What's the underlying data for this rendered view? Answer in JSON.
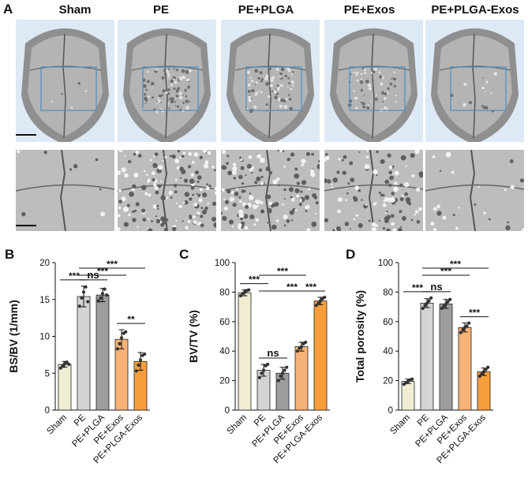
{
  "figure": {
    "panel_labels": [
      "A",
      "B",
      "C",
      "D"
    ],
    "groups": [
      "Sham",
      "PE",
      "PE+PLGA",
      "PE+Exos",
      "PE+PLGA-Exos"
    ],
    "bar_colors": [
      "#f1edd3",
      "#d4d4d4",
      "#9d9d9d",
      "#f7b277",
      "#f79f3c"
    ],
    "roi_box_color": "#4a90c4"
  },
  "chart_data": [
    {
      "type": "bar",
      "panel": "B",
      "title": "",
      "xlabel": "",
      "ylabel": "BS/BV (1/mm)",
      "ylim": [
        0,
        20
      ],
      "yticks": [
        "0",
        "5",
        "10",
        "15",
        "20"
      ],
      "categories": [
        "Sham",
        "PE",
        "PE+PLGA",
        "PE+Exos",
        "PE+PLGA-Exos"
      ],
      "values": [
        6.2,
        15.4,
        15.6,
        9.6,
        6.6
      ],
      "errors": [
        0.4,
        1.4,
        0.9,
        1.3,
        1.2
      ],
      "points": [
        [
          5.7,
          6.0,
          6.3,
          6.5,
          6.2
        ],
        [
          14.1,
          15.2,
          16.0,
          16.7,
          14.7
        ],
        [
          14.8,
          15.2,
          15.8,
          16.4,
          15.6
        ],
        [
          8.3,
          9.0,
          9.8,
          10.4,
          10.6
        ],
        [
          5.3,
          6.1,
          6.8,
          7.4,
          7.6
        ]
      ],
      "significance": [
        {
          "a": 0,
          "b": 1,
          "label": "***",
          "level": 0
        },
        {
          "a": 1,
          "b": 2,
          "label": "ns",
          "level": 0
        },
        {
          "a": 1,
          "b": 3,
          "label": "***",
          "level": 1
        },
        {
          "a": 1,
          "b": 4,
          "label": "***",
          "level": 2
        },
        {
          "a": 3,
          "b": 4,
          "label": "**",
          "level": 0
        }
      ]
    },
    {
      "type": "bar",
      "panel": "C",
      "title": "",
      "xlabel": "",
      "ylabel": "BV/TV (%)",
      "ylim": [
        0,
        100
      ],
      "yticks": [
        "0",
        "20",
        "40",
        "60",
        "80",
        "100"
      ],
      "categories": [
        "Sham",
        "PE",
        "PE+PLGA",
        "PE+Exos",
        "PE+PLGA-Exos"
      ],
      "values": [
        79.5,
        27,
        25,
        43,
        74
      ],
      "errors": [
        2,
        4,
        4,
        3,
        2.5
      ],
      "points": [
        [
          77.5,
          79,
          80,
          81,
          81.5
        ],
        [
          22,
          25,
          27,
          30,
          31
        ],
        [
          20,
          23,
          25,
          27,
          29
        ],
        [
          40,
          42,
          43,
          45,
          46
        ],
        [
          71,
          72.5,
          74,
          75.5,
          76.5
        ]
      ],
      "significance": [
        {
          "a": 0,
          "b": 1,
          "label": "***",
          "level": 0
        },
        {
          "a": 1,
          "b": 4,
          "label": "***",
          "level": 0
        },
        {
          "a": 1,
          "b": 2,
          "label": "ns",
          "level": 0
        },
        {
          "a": 1,
          "b": 3,
          "label": "***",
          "level": 1
        },
        {
          "a": 3,
          "b": 4,
          "label": "***",
          "level": 0
        }
      ]
    },
    {
      "type": "bar",
      "panel": "D",
      "title": "",
      "xlabel": "",
      "ylabel": "Total porosity (%)",
      "ylim": [
        0,
        100
      ],
      "yticks": [
        "0",
        "20",
        "40",
        "60",
        "80",
        "100"
      ],
      "categories": [
        "Sham",
        "PE",
        "PE+PLGA",
        "PE+Exos",
        "PE+PLGA-Exos"
      ],
      "values": [
        19.5,
        72.5,
        72,
        56,
        26
      ],
      "errors": [
        1.5,
        3,
        3,
        3,
        2.5
      ],
      "points": [
        [
          17.5,
          18.5,
          19.5,
          20.5,
          21
        ],
        [
          69,
          71,
          72.5,
          74,
          76
        ],
        [
          69,
          70.5,
          72,
          73.5,
          75
        ],
        [
          52.5,
          54.5,
          56,
          57,
          59
        ],
        [
          23,
          24.5,
          26,
          27.5,
          29
        ]
      ],
      "significance": [
        {
          "a": 0,
          "b": 1,
          "label": "***",
          "level": 0
        },
        {
          "a": 1,
          "b": 2,
          "label": "ns",
          "level": 0
        },
        {
          "a": 1,
          "b": 3,
          "label": "***",
          "level": 1
        },
        {
          "a": 1,
          "b": 4,
          "label": "***",
          "level": 2
        },
        {
          "a": 3,
          "b": 4,
          "label": "***",
          "level": 0
        }
      ]
    }
  ]
}
